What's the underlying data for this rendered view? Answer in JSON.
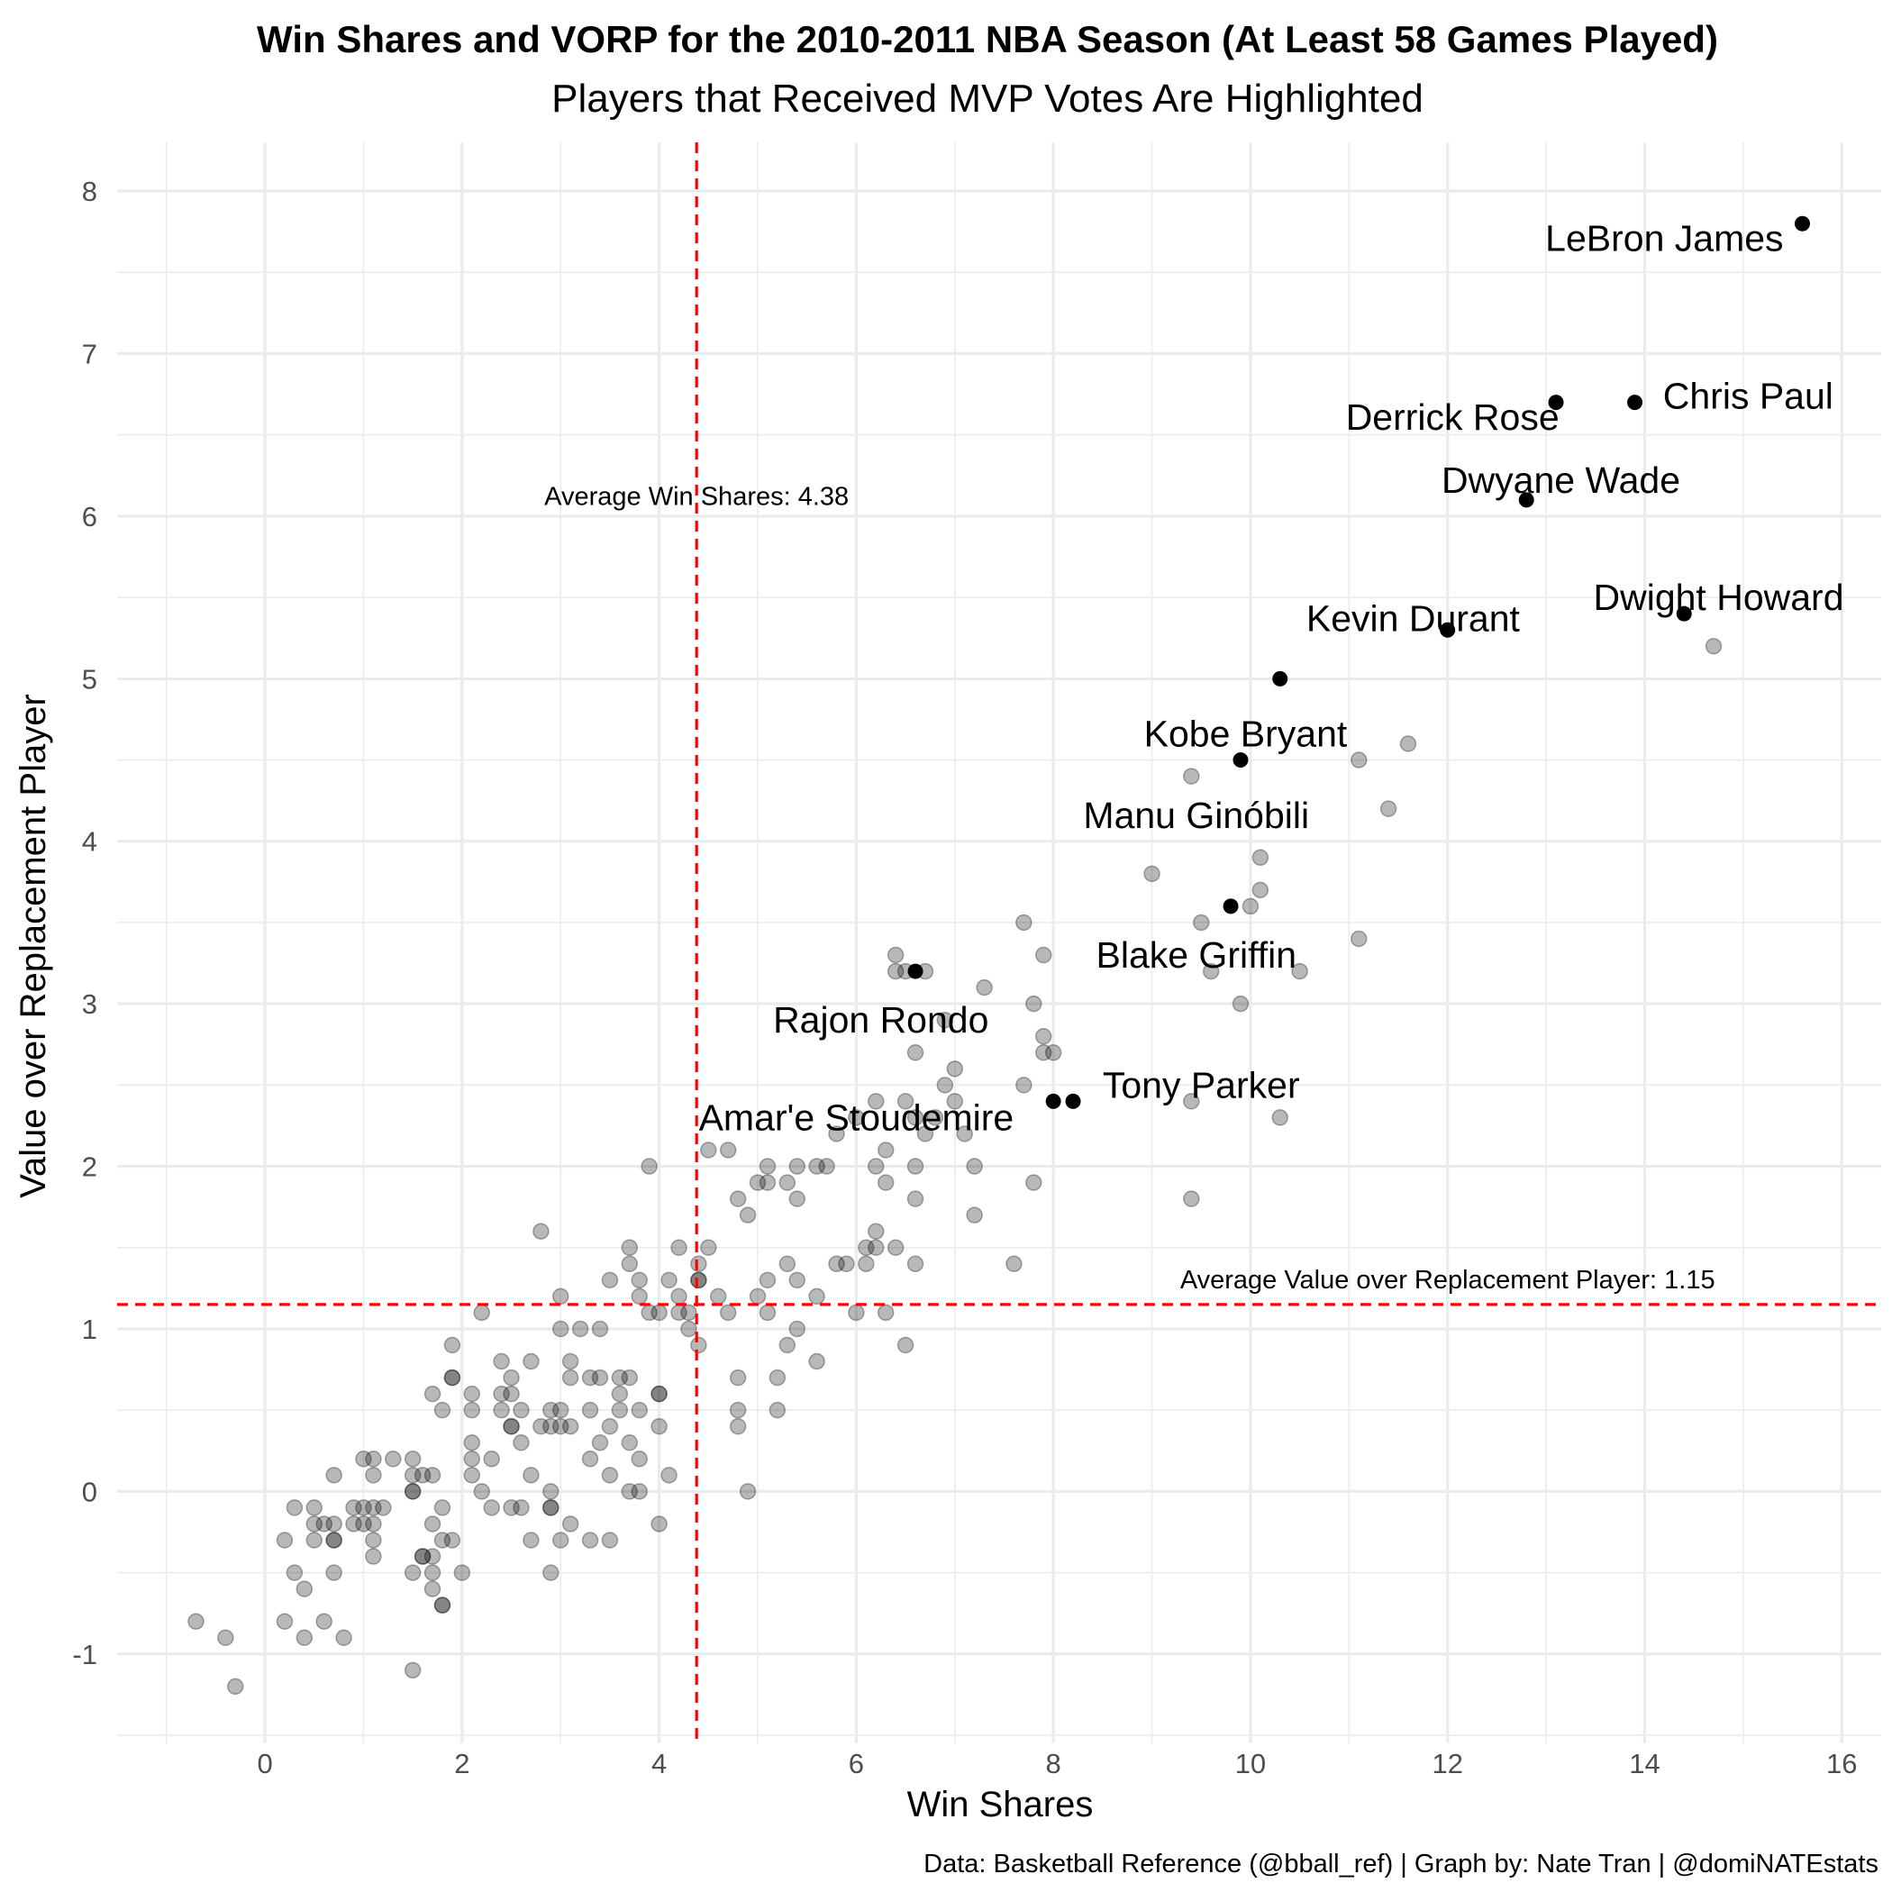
{
  "chart_data": {
    "type": "scatter",
    "title": "Win Shares and VORP for the 2010-2011 NBA Season (At Least 58 Games Played)",
    "subtitle": "Players that Received MVP Votes Are Highlighted",
    "xlabel": "Win Shares",
    "ylabel": "Value over Replacement Player",
    "caption": "Data: Basketball Reference (@bball_ref) | Graph by: Nate Tran | @domiNATEstats",
    "xlim": [
      -1.5,
      16.4
    ],
    "ylim": [
      -1.55,
      8.3
    ],
    "x_ticks": [
      0,
      2,
      4,
      6,
      8,
      10,
      12,
      14,
      16
    ],
    "y_ticks": [
      -1,
      0,
      1,
      2,
      3,
      4,
      5,
      6,
      7,
      8
    ],
    "grid": true,
    "colors": {
      "highlight": "#000000",
      "other": "#000000",
      "reference_line": "#ff0000",
      "grid": "#ebebeb"
    },
    "reference_lines": [
      {
        "axis": "x",
        "value": 4.38,
        "label": "Average Win Shares:  4.38"
      },
      {
        "axis": "y",
        "value": 1.15,
        "label": "Average Value over Replacement Player:  1.15"
      }
    ],
    "highlighted": [
      {
        "name": "LeBron James",
        "x": 15.6,
        "y": 7.8
      },
      {
        "name": "Chris Paul",
        "x": 13.9,
        "y": 6.7
      },
      {
        "name": "Derrick Rose",
        "x": 13.1,
        "y": 6.7
      },
      {
        "name": "Dwyane Wade",
        "x": 12.8,
        "y": 6.1
      },
      {
        "name": "Dwight Howard",
        "x": 14.4,
        "y": 5.4
      },
      {
        "name": "Kevin Durant",
        "x": 12.0,
        "y": 5.3
      },
      {
        "name": "Kobe Bryant",
        "x": 10.3,
        "y": 5.0
      },
      {
        "name": "Manu Ginóbili",
        "x": 9.9,
        "y": 4.5
      },
      {
        "name": "Blake Griffin",
        "x": 9.8,
        "y": 3.6
      },
      {
        "name": "Rajon Rondo",
        "x": 6.6,
        "y": 3.2
      },
      {
        "name": "Tony Parker",
        "x": 8.2,
        "y": 2.4
      },
      {
        "name": "Amar'e Stoudemire",
        "x": 8.0,
        "y": 2.4
      }
    ],
    "others": [
      [
        14.7,
        5.2
      ],
      [
        11.6,
        4.6
      ],
      [
        11.1,
        4.5
      ],
      [
        9.4,
        4.4
      ],
      [
        11.4,
        4.2
      ],
      [
        10.1,
        3.9
      ],
      [
        9.0,
        3.8
      ],
      [
        10.1,
        3.7
      ],
      [
        10.0,
        3.6
      ],
      [
        7.7,
        3.5
      ],
      [
        9.5,
        3.5
      ],
      [
        11.1,
        3.4
      ],
      [
        6.4,
        3.3
      ],
      [
        7.9,
        3.3
      ],
      [
        6.4,
        3.2
      ],
      [
        6.5,
        3.2
      ],
      [
        6.7,
        3.2
      ],
      [
        9.6,
        3.2
      ],
      [
        10.5,
        3.2
      ],
      [
        7.3,
        3.1
      ],
      [
        7.8,
        3.0
      ],
      [
        9.9,
        3.0
      ],
      [
        6.9,
        2.9
      ],
      [
        7.9,
        2.8
      ],
      [
        6.6,
        2.7
      ],
      [
        7.9,
        2.7
      ],
      [
        8.0,
        2.7
      ],
      [
        7.0,
        2.6
      ],
      [
        6.9,
        2.5
      ],
      [
        7.7,
        2.5
      ],
      [
        6.2,
        2.4
      ],
      [
        6.5,
        2.4
      ],
      [
        7.0,
        2.4
      ],
      [
        9.4,
        2.4
      ],
      [
        6.0,
        2.3
      ],
      [
        6.6,
        2.3
      ],
      [
        6.8,
        2.3
      ],
      [
        10.3,
        2.3
      ],
      [
        5.8,
        2.2
      ],
      [
        6.7,
        2.2
      ],
      [
        7.1,
        2.2
      ],
      [
        4.5,
        2.1
      ],
      [
        4.7,
        2.1
      ],
      [
        6.3,
        2.1
      ],
      [
        3.9,
        2.0
      ],
      [
        5.1,
        2.0
      ],
      [
        5.4,
        2.0
      ],
      [
        5.6,
        2.0
      ],
      [
        5.7,
        2.0
      ],
      [
        6.2,
        2.0
      ],
      [
        6.6,
        2.0
      ],
      [
        7.2,
        2.0
      ],
      [
        5.0,
        1.9
      ],
      [
        5.1,
        1.9
      ],
      [
        5.3,
        1.9
      ],
      [
        6.3,
        1.9
      ],
      [
        7.8,
        1.9
      ],
      [
        4.8,
        1.8
      ],
      [
        5.4,
        1.8
      ],
      [
        6.6,
        1.8
      ],
      [
        9.4,
        1.8
      ],
      [
        4.9,
        1.7
      ],
      [
        7.2,
        1.7
      ],
      [
        2.8,
        1.6
      ],
      [
        6.2,
        1.6
      ],
      [
        3.7,
        1.5
      ],
      [
        4.2,
        1.5
      ],
      [
        4.5,
        1.5
      ],
      [
        6.1,
        1.5
      ],
      [
        6.2,
        1.5
      ],
      [
        6.4,
        1.5
      ],
      [
        3.7,
        1.4
      ],
      [
        4.4,
        1.4
      ],
      [
        5.3,
        1.4
      ],
      [
        5.8,
        1.4
      ],
      [
        5.9,
        1.4
      ],
      [
        6.1,
        1.4
      ],
      [
        6.6,
        1.4
      ],
      [
        7.6,
        1.4
      ],
      [
        3.5,
        1.3
      ],
      [
        3.8,
        1.3
      ],
      [
        4.1,
        1.3
      ],
      [
        4.4,
        1.3
      ],
      [
        4.4,
        1.3
      ],
      [
        5.1,
        1.3
      ],
      [
        5.4,
        1.3
      ],
      [
        3.0,
        1.2
      ],
      [
        3.8,
        1.2
      ],
      [
        4.2,
        1.2
      ],
      [
        4.6,
        1.2
      ],
      [
        5.0,
        1.2
      ],
      [
        5.6,
        1.2
      ],
      [
        2.2,
        1.1
      ],
      [
        3.9,
        1.1
      ],
      [
        4.0,
        1.1
      ],
      [
        4.2,
        1.1
      ],
      [
        4.3,
        1.1
      ],
      [
        4.7,
        1.1
      ],
      [
        5.1,
        1.1
      ],
      [
        6.0,
        1.1
      ],
      [
        6.3,
        1.1
      ],
      [
        3.0,
        1.0
      ],
      [
        3.2,
        1.0
      ],
      [
        3.4,
        1.0
      ],
      [
        4.3,
        1.0
      ],
      [
        5.4,
        1.0
      ],
      [
        1.9,
        0.9
      ],
      [
        4.4,
        0.9
      ],
      [
        5.3,
        0.9
      ],
      [
        6.5,
        0.9
      ],
      [
        2.4,
        0.8
      ],
      [
        2.7,
        0.8
      ],
      [
        3.1,
        0.8
      ],
      [
        5.6,
        0.8
      ],
      [
        1.9,
        0.7
      ],
      [
        1.9,
        0.7
      ],
      [
        2.5,
        0.7
      ],
      [
        3.1,
        0.7
      ],
      [
        3.3,
        0.7
      ],
      [
        3.4,
        0.7
      ],
      [
        3.6,
        0.7
      ],
      [
        3.7,
        0.7
      ],
      [
        4.8,
        0.7
      ],
      [
        5.2,
        0.7
      ],
      [
        1.7,
        0.6
      ],
      [
        2.1,
        0.6
      ],
      [
        2.4,
        0.6
      ],
      [
        2.5,
        0.6
      ],
      [
        3.6,
        0.6
      ],
      [
        4.0,
        0.6
      ],
      [
        4.0,
        0.6
      ],
      [
        1.8,
        0.5
      ],
      [
        2.1,
        0.5
      ],
      [
        2.4,
        0.5
      ],
      [
        2.6,
        0.5
      ],
      [
        2.9,
        0.5
      ],
      [
        3.0,
        0.5
      ],
      [
        3.3,
        0.5
      ],
      [
        3.6,
        0.5
      ],
      [
        3.8,
        0.5
      ],
      [
        4.8,
        0.5
      ],
      [
        5.2,
        0.5
      ],
      [
        2.5,
        0.4
      ],
      [
        2.5,
        0.4
      ],
      [
        2.8,
        0.4
      ],
      [
        2.9,
        0.4
      ],
      [
        3.0,
        0.4
      ],
      [
        3.1,
        0.4
      ],
      [
        3.5,
        0.4
      ],
      [
        4.0,
        0.4
      ],
      [
        4.8,
        0.4
      ],
      [
        2.1,
        0.3
      ],
      [
        2.6,
        0.3
      ],
      [
        3.4,
        0.3
      ],
      [
        3.7,
        0.3
      ],
      [
        2.1,
        0.2
      ],
      [
        2.3,
        0.2
      ],
      [
        3.3,
        0.2
      ],
      [
        3.8,
        0.2
      ],
      [
        1.0,
        0.2
      ],
      [
        1.1,
        0.2
      ],
      [
        1.3,
        0.2
      ],
      [
        1.5,
        0.2
      ],
      [
        0.7,
        0.1
      ],
      [
        1.1,
        0.1
      ],
      [
        1.5,
        0.1
      ],
      [
        1.6,
        0.1
      ],
      [
        1.7,
        0.1
      ],
      [
        2.1,
        0.1
      ],
      [
        2.7,
        0.1
      ],
      [
        3.5,
        0.1
      ],
      [
        4.1,
        0.1
      ],
      [
        1.5,
        0.0
      ],
      [
        1.5,
        0.0
      ],
      [
        2.2,
        0.0
      ],
      [
        2.9,
        0.0
      ],
      [
        3.7,
        0.0
      ],
      [
        3.8,
        0.0
      ],
      [
        4.9,
        0.0
      ],
      [
        0.3,
        -0.1
      ],
      [
        0.5,
        -0.1
      ],
      [
        0.9,
        -0.1
      ],
      [
        1.0,
        -0.1
      ],
      [
        1.1,
        -0.1
      ],
      [
        1.2,
        -0.1
      ],
      [
        1.8,
        -0.1
      ],
      [
        2.3,
        -0.1
      ],
      [
        2.5,
        -0.1
      ],
      [
        2.6,
        -0.1
      ],
      [
        2.9,
        -0.1
      ],
      [
        2.9,
        -0.1
      ],
      [
        0.5,
        -0.2
      ],
      [
        0.6,
        -0.2
      ],
      [
        0.7,
        -0.2
      ],
      [
        0.9,
        -0.2
      ],
      [
        1.0,
        -0.2
      ],
      [
        1.1,
        -0.2
      ],
      [
        1.7,
        -0.2
      ],
      [
        3.1,
        -0.2
      ],
      [
        4.0,
        -0.2
      ],
      [
        0.2,
        -0.3
      ],
      [
        0.5,
        -0.3
      ],
      [
        0.7,
        -0.3
      ],
      [
        0.7,
        -0.3
      ],
      [
        1.1,
        -0.3
      ],
      [
        1.8,
        -0.3
      ],
      [
        1.9,
        -0.3
      ],
      [
        2.7,
        -0.3
      ],
      [
        3.0,
        -0.3
      ],
      [
        3.3,
        -0.3
      ],
      [
        3.5,
        -0.3
      ],
      [
        1.1,
        -0.4
      ],
      [
        1.6,
        -0.4
      ],
      [
        1.6,
        -0.4
      ],
      [
        1.7,
        -0.4
      ],
      [
        0.3,
        -0.5
      ],
      [
        0.7,
        -0.5
      ],
      [
        1.5,
        -0.5
      ],
      [
        1.7,
        -0.5
      ],
      [
        2.0,
        -0.5
      ],
      [
        2.9,
        -0.5
      ],
      [
        0.4,
        -0.6
      ],
      [
        1.7,
        -0.6
      ],
      [
        1.8,
        -0.7
      ],
      [
        1.8,
        -0.7
      ],
      [
        -0.7,
        -0.8
      ],
      [
        0.2,
        -0.8
      ],
      [
        0.6,
        -0.8
      ],
      [
        -0.4,
        -0.9
      ],
      [
        0.4,
        -0.9
      ],
      [
        0.8,
        -0.9
      ],
      [
        1.5,
        -1.1
      ],
      [
        -0.3,
        -1.2
      ]
    ]
  }
}
